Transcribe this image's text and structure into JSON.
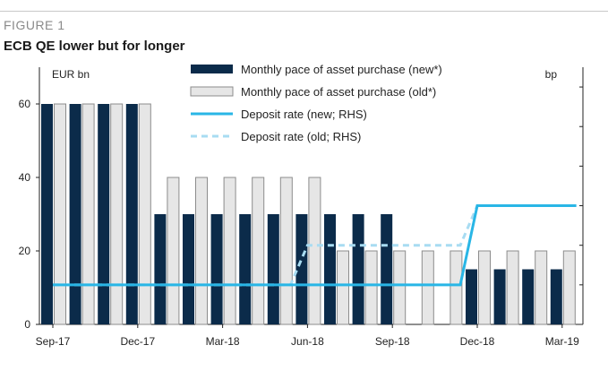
{
  "figure_label": "FIGURE 1",
  "title": "ECB QE lower but for longer",
  "chart_data": {
    "type": "bar",
    "title": "ECB QE lower but for longer",
    "ylabel": "EUR bn",
    "y2label": "bp",
    "ylim": [
      0,
      70
    ],
    "yticks": [
      0,
      20,
      40,
      60
    ],
    "y2ticks": [
      -40,
      -30,
      -20,
      -10,
      0,
      10
    ],
    "y2lim": [
      -50,
      15
    ],
    "grid": false,
    "legend_position": "top",
    "categories": [
      "Sep-17",
      "Oct-17",
      "Nov-17",
      "Dec-17",
      "Jan-18",
      "Feb-18",
      "Mar-18",
      "Apr-18",
      "May-18",
      "Jun-18",
      "Jul-18",
      "Aug-18",
      "Sep-18",
      "Oct-18",
      "Nov-18",
      "Dec-18",
      "Jan-19",
      "Feb-19",
      "Mar-19"
    ],
    "xtick_labels": [
      "Sep-17",
      "Dec-17",
      "Mar-18",
      "Jun-18",
      "Sep-18",
      "Dec-18",
      "Mar-19"
    ],
    "xtick_indices": [
      0,
      3,
      6,
      9,
      12,
      15,
      18
    ],
    "series": [
      {
        "name": "Monthly pace of asset purchase (new*)",
        "kind": "bar",
        "color": "#0b2b4a",
        "values": [
          60,
          60,
          60,
          60,
          30,
          30,
          30,
          30,
          30,
          30,
          30,
          30,
          30,
          0,
          0,
          15,
          15,
          15,
          15
        ]
      },
      {
        "name": "Monthly pace of asset purchase (old*)",
        "kind": "bar",
        "color": "#e6e6e6",
        "values": [
          60,
          60,
          60,
          60,
          40,
          40,
          40,
          40,
          40,
          40,
          20,
          20,
          20,
          20,
          20,
          20,
          20,
          20,
          20
        ]
      },
      {
        "name": "Deposit rate (new; RHS)",
        "kind": "line",
        "axis": "right",
        "color": "#29b6e6",
        "dash": false,
        "x": [
          0,
          8.6,
          14.4,
          15.0,
          18.5
        ],
        "values": [
          -40,
          -40,
          -40,
          -20,
          -20
        ]
      },
      {
        "name": "Deposit rate (old; RHS)",
        "kind": "line",
        "axis": "right",
        "color": "#a8dcf2",
        "dash": true,
        "x": [
          0,
          8.4,
          9.0,
          14.4,
          15.0,
          18.5
        ],
        "values": [
          -40,
          -40,
          -30,
          -30,
          -20,
          -20
        ]
      }
    ]
  }
}
